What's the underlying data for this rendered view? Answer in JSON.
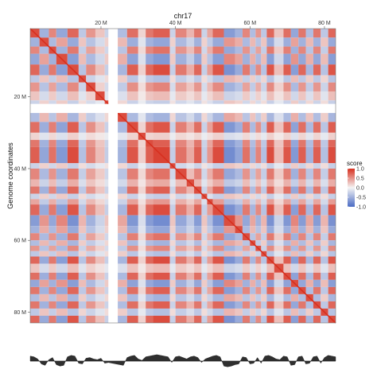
{
  "chart_data": {
    "type": "heatmap",
    "title": "chr17",
    "ylabel": "Genome coordinates",
    "xlim": [
      1,
      83
    ],
    "ylim": [
      1,
      83
    ],
    "x_ticks": [
      {
        "value": 20,
        "label": "20 M"
      },
      {
        "value": 40,
        "label": "40 M"
      },
      {
        "value": 60,
        "label": "60 M"
      },
      {
        "value": 80,
        "label": "80 M"
      }
    ],
    "y_ticks": [
      {
        "value": 20,
        "label": "20 M"
      },
      {
        "value": 40,
        "label": "40 M"
      },
      {
        "value": 60,
        "label": "60 M"
      },
      {
        "value": 80,
        "label": "80 M"
      }
    ],
    "legend": {
      "title": "score",
      "position": "right",
      "breaks": [
        {
          "value": 1.0,
          "label": "1.0"
        },
        {
          "value": 0.5,
          "label": "0.5"
        },
        {
          "value": 0.0,
          "label": "0.0"
        },
        {
          "value": -0.5,
          "label": "-0.5"
        },
        {
          "value": -1.0,
          "label": "-1.0"
        }
      ],
      "colors": {
        "low": "#4a6bc4",
        "mid": "#f4f4f4",
        "high": "#d7301f"
      }
    },
    "value_range": [
      -1,
      1
    ],
    "diagonal_value": 1.0,
    "masked_regions_mb": [
      [
        22.0,
        24.5
      ]
    ],
    "compartments_mb": [
      {
        "start": 1,
        "end": 3.5,
        "value": 0.8
      },
      {
        "start": 3.5,
        "end": 6,
        "value": -0.6
      },
      {
        "start": 6,
        "end": 8,
        "value": 0.7
      },
      {
        "start": 8,
        "end": 11,
        "value": -0.7
      },
      {
        "start": 11,
        "end": 14,
        "value": 0.9
      },
      {
        "start": 14,
        "end": 16,
        "value": -0.4
      },
      {
        "start": 16,
        "end": 18.5,
        "value": 0.6
      },
      {
        "start": 18.5,
        "end": 21,
        "value": 0.3
      },
      {
        "start": 21,
        "end": 22,
        "value": -0.3
      },
      {
        "start": 24.5,
        "end": 27,
        "value": -0.5
      },
      {
        "start": 27,
        "end": 30,
        "value": 0.85
      },
      {
        "start": 30,
        "end": 32,
        "value": 0.2
      },
      {
        "start": 32,
        "end": 34,
        "value": 0.8
      },
      {
        "start": 34,
        "end": 38.5,
        "value": 0.95
      },
      {
        "start": 38.5,
        "end": 40,
        "value": -0.3
      },
      {
        "start": 40,
        "end": 43,
        "value": 0.7
      },
      {
        "start": 43,
        "end": 45,
        "value": 0.4
      },
      {
        "start": 45,
        "end": 47,
        "value": 0.8
      },
      {
        "start": 47,
        "end": 48.5,
        "value": -0.3
      },
      {
        "start": 48.5,
        "end": 50,
        "value": 0.5
      },
      {
        "start": 50,
        "end": 53,
        "value": 0.9
      },
      {
        "start": 53,
        "end": 56,
        "value": -0.8
      },
      {
        "start": 56,
        "end": 58,
        "value": -0.6
      },
      {
        "start": 58,
        "end": 60,
        "value": 0.7
      },
      {
        "start": 60,
        "end": 61.5,
        "value": -0.5
      },
      {
        "start": 61.5,
        "end": 63,
        "value": 0.6
      },
      {
        "start": 63,
        "end": 64.5,
        "value": -0.4
      },
      {
        "start": 64.5,
        "end": 66.5,
        "value": 0.9
      },
      {
        "start": 66.5,
        "end": 69,
        "value": 0.3
      },
      {
        "start": 69,
        "end": 71,
        "value": 0.85
      },
      {
        "start": 71,
        "end": 73,
        "value": -0.7
      },
      {
        "start": 73,
        "end": 75,
        "value": 0.8
      },
      {
        "start": 75,
        "end": 77,
        "value": -0.5
      },
      {
        "start": 77,
        "end": 79,
        "value": 0.8
      },
      {
        "start": 79,
        "end": 81,
        "value": -0.4
      },
      {
        "start": 81,
        "end": 83,
        "value": 0.9
      }
    ],
    "track": {
      "type": "area",
      "x": [
        1,
        2,
        3,
        4,
        5,
        6,
        7,
        8,
        9,
        10,
        11,
        12,
        13,
        14,
        15,
        16,
        17,
        18,
        19,
        20,
        21,
        22,
        25,
        26,
        27,
        28,
        29,
        30,
        31,
        32,
        33,
        34,
        35,
        36,
        37,
        38,
        39,
        40,
        41,
        42,
        43,
        44,
        45,
        46,
        47,
        48,
        49,
        50,
        51,
        52,
        53,
        54,
        55,
        56,
        57,
        58,
        59,
        60,
        61,
        62,
        63,
        64,
        65,
        66,
        67,
        68,
        69,
        70,
        71,
        72,
        73,
        74,
        75,
        76,
        77,
        78,
        79,
        80,
        81,
        82,
        83
      ],
      "y": [
        0.7,
        0.6,
        0.3,
        -0.4,
        -0.6,
        0.2,
        0.5,
        -0.5,
        -0.7,
        -0.6,
        0.6,
        0.8,
        0.7,
        -0.3,
        -0.4,
        0.4,
        0.5,
        0.3,
        0.2,
        0.4,
        -0.3,
        -0.2,
        -0.5,
        -0.6,
        0.5,
        0.7,
        0.8,
        0.3,
        0.1,
        0.6,
        0.7,
        0.8,
        0.9,
        0.8,
        0.7,
        0.6,
        -0.2,
        0.6,
        0.7,
        0.5,
        0.3,
        0.6,
        0.7,
        0.5,
        -0.2,
        0.3,
        0.5,
        0.7,
        0.8,
        0.6,
        -0.7,
        -0.8,
        -0.7,
        -0.5,
        -0.4,
        0.6,
        0.5,
        -0.4,
        -0.3,
        0.5,
        -0.3,
        0.7,
        0.8,
        0.6,
        0.3,
        0.2,
        0.7,
        0.6,
        -0.6,
        -0.5,
        0.6,
        0.7,
        -0.4,
        -0.3,
        0.6,
        0.7,
        -0.3,
        0.5,
        0.8,
        0.7,
        0.6
      ]
    }
  }
}
